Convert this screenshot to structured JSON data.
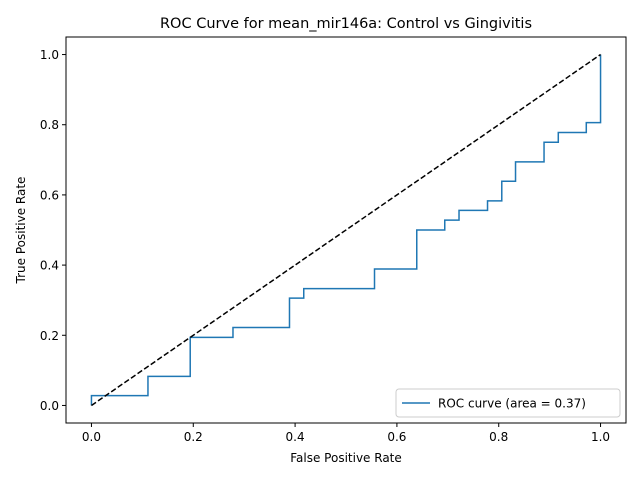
{
  "chart_data": {
    "type": "line",
    "title": "ROC Curve for mean_mir146a: Control vs Gingivitis",
    "xlabel": "False Positive Rate",
    "ylabel": "True Positive Rate",
    "xlim": [
      -0.05,
      1.05
    ],
    "ylim": [
      -0.05,
      1.05
    ],
    "xticks": [
      0.0,
      0.2,
      0.4,
      0.6,
      0.8,
      1.0
    ],
    "xtick_labels": [
      "0.0",
      "0.2",
      "0.4",
      "0.6",
      "0.8",
      "1.0"
    ],
    "yticks": [
      0.0,
      0.2,
      0.4,
      0.6,
      0.8,
      1.0
    ],
    "ytick_labels": [
      "0.0",
      "0.2",
      "0.4",
      "0.6",
      "0.8",
      "1.0"
    ],
    "grid": false,
    "legend_position": "lower right",
    "series": [
      {
        "name": "ROC curve (area = 0.37)",
        "color": "#1f77b4",
        "style": "solid",
        "x": [
          0.0,
          0.0,
          0.111,
          0.111,
          0.194,
          0.194,
          0.278,
          0.278,
          0.389,
          0.389,
          0.417,
          0.417,
          0.556,
          0.556,
          0.639,
          0.639,
          0.694,
          0.694,
          0.722,
          0.722,
          0.778,
          0.778,
          0.806,
          0.806,
          0.833,
          0.833,
          0.889,
          0.889,
          0.917,
          0.917,
          0.972,
          0.972,
          1.0,
          1.0
        ],
        "y": [
          0.0,
          0.028,
          0.028,
          0.083,
          0.083,
          0.194,
          0.194,
          0.222,
          0.222,
          0.306,
          0.306,
          0.333,
          0.333,
          0.389,
          0.389,
          0.5,
          0.5,
          0.528,
          0.528,
          0.556,
          0.556,
          0.583,
          0.583,
          0.639,
          0.639,
          0.694,
          0.694,
          0.75,
          0.75,
          0.778,
          0.778,
          0.806,
          0.806,
          1.0
        ]
      },
      {
        "color": "#000000",
        "style": "dashed",
        "x": [
          0.0,
          1.0
        ],
        "y": [
          0.0,
          1.0
        ]
      }
    ]
  }
}
